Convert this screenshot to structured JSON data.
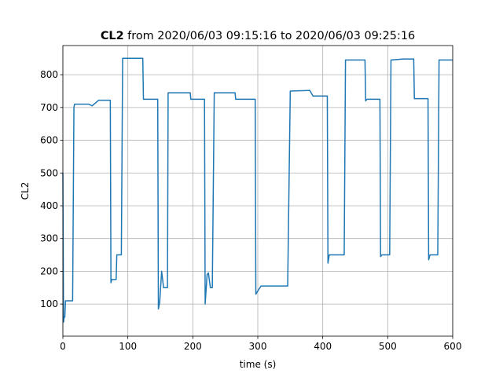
{
  "chart_data": {
    "type": "line",
    "title_bold": "CL2",
    "title": "from 2020/06/03 09:15:16 to 2020/06/03 09:25:16",
    "xlabel": "time (s)",
    "ylabel": "CL2",
    "xlim": [
      0,
      600
    ],
    "xticks": [
      0,
      100,
      200,
      300,
      400,
      500,
      600
    ],
    "ylim": [
      2,
      889
    ],
    "yticks": [
      100,
      200,
      300,
      400,
      500,
      600,
      700,
      800
    ],
    "grid": true,
    "series": [
      {
        "name": "CL2",
        "color": "#1f77b4",
        "x": [
          0,
          1,
          2,
          3,
          4,
          15,
          17,
          18,
          40,
          45,
          55,
          73,
          74,
          75,
          82,
          83,
          90,
          92,
          123,
          124,
          146,
          147,
          149,
          152,
          155,
          161,
          162,
          196,
          197,
          218,
          219,
          222,
          224,
          227,
          230,
          233,
          265,
          266,
          296,
          297,
          300,
          305,
          346,
          350,
          380,
          385,
          407,
          408,
          410,
          433,
          435,
          465,
          466,
          468,
          488,
          489,
          491,
          503,
          505,
          525,
          540,
          541,
          562,
          563,
          565,
          577,
          579,
          600
        ],
        "values": [
          500,
          45,
          60,
          60,
          110,
          110,
          700,
          710,
          710,
          705,
          722,
          722,
          165,
          175,
          175,
          250,
          250,
          850,
          850,
          725,
          725,
          85,
          105,
          200,
          150,
          150,
          745,
          745,
          725,
          725,
          100,
          190,
          195,
          150,
          150,
          745,
          745,
          725,
          725,
          130,
          140,
          155,
          155,
          750,
          752,
          735,
          735,
          225,
          250,
          250,
          845,
          845,
          720,
          725,
          725,
          245,
          250,
          250,
          845,
          848,
          848,
          727,
          727,
          235,
          250,
          250,
          845,
          845
        ]
      }
    ]
  }
}
